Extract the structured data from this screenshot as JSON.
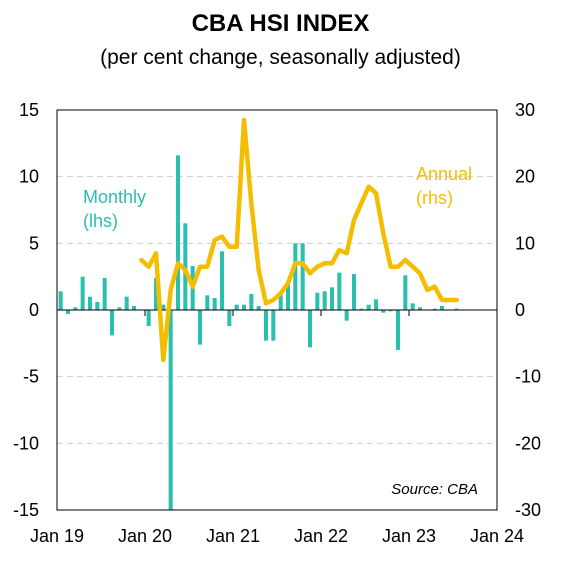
{
  "chart_data": {
    "type": "bar+line",
    "title": "CBA HSI INDEX",
    "subtitle": "(per cent change, seasonally adjusted)",
    "x_tick_labels": [
      "Jan 19",
      "Jan 20",
      "Jan 21",
      "Jan 22",
      "Jan 23",
      "Jan 24"
    ],
    "left_axis": {
      "ylim": [
        -15,
        15
      ],
      "ticks": [
        "15",
        "10",
        "5",
        "0",
        "-5",
        "-10",
        "-15"
      ]
    },
    "right_axis": {
      "ylim": [
        -30,
        30
      ],
      "ticks": [
        "30",
        "20",
        "10",
        "0",
        "-10",
        "-20",
        "-30"
      ]
    },
    "grid": "horizontal dashed",
    "series": [
      {
        "name": "Monthly (lhs)",
        "label_lines": [
          "Monthly",
          "(lhs)"
        ],
        "type": "bar",
        "axis": "left",
        "color": "#2bbfae",
        "x": [
          "2019-01",
          "2019-02",
          "2019-03",
          "2019-04",
          "2019-05",
          "2019-06",
          "2019-07",
          "2019-08",
          "2019-09",
          "2019-10",
          "2019-11",
          "2019-12",
          "2020-01",
          "2020-02",
          "2020-03",
          "2020-04",
          "2020-05",
          "2020-06",
          "2020-07",
          "2020-08",
          "2020-09",
          "2020-10",
          "2020-11",
          "2020-12",
          "2021-01",
          "2021-02",
          "2021-03",
          "2021-04",
          "2021-05",
          "2021-06",
          "2021-07",
          "2021-08",
          "2021-09",
          "2021-10",
          "2021-11",
          "2021-12",
          "2022-01",
          "2022-02",
          "2022-03",
          "2022-04",
          "2022-05",
          "2022-06",
          "2022-07",
          "2022-08",
          "2022-09",
          "2022-10",
          "2022-11",
          "2022-12",
          "2023-01",
          "2023-02",
          "2023-03",
          "2023-04",
          "2023-05",
          "2023-06",
          "2023-07"
        ],
        "values": [
          1.4,
          -0.3,
          0.2,
          2.5,
          1.0,
          0.6,
          2.4,
          -1.9,
          0.2,
          1.0,
          0.3,
          0.0,
          -1.2,
          2.4,
          0.4,
          -15.0,
          11.6,
          6.5,
          3.3,
          -2.6,
          1.1,
          0.9,
          4.4,
          -1.2,
          0.4,
          0.4,
          1.2,
          0.3,
          -2.3,
          -2.3,
          1.1,
          2.0,
          5.0,
          5.0,
          -2.8,
          1.3,
          1.4,
          1.7,
          2.8,
          -0.8,
          2.7,
          0.1,
          0.4,
          0.8,
          -0.2,
          -0.1,
          -3.0,
          2.6,
          0.5,
          0.2,
          0.0,
          0.1,
          0.3,
          0.0,
          0.1
        ]
      },
      {
        "name": "Annual (rhs)",
        "label_lines": [
          "Annual",
          "(rhs)"
        ],
        "type": "line",
        "axis": "right",
        "color": "#f5bd00",
        "x": [
          "2019-12",
          "2020-01",
          "2020-02",
          "2020-03",
          "2020-04",
          "2020-05",
          "2020-06",
          "2020-07",
          "2020-08",
          "2020-09",
          "2020-10",
          "2020-11",
          "2020-12",
          "2021-01",
          "2021-02",
          "2021-03",
          "2021-04",
          "2021-05",
          "2021-06",
          "2021-07",
          "2021-08",
          "2021-09",
          "2021-10",
          "2021-11",
          "2021-12",
          "2022-01",
          "2022-02",
          "2022-03",
          "2022-04",
          "2022-05",
          "2022-06",
          "2022-07",
          "2022-08",
          "2022-09",
          "2022-10",
          "2022-11",
          "2022-12",
          "2023-01",
          "2023-02",
          "2023-03",
          "2023-04",
          "2023-05",
          "2023-06",
          "2023-07"
        ],
        "values": [
          7.5,
          6.5,
          8.5,
          -7.5,
          3.0,
          7.0,
          6.0,
          3.5,
          6.5,
          6.5,
          10.5,
          11.0,
          9.5,
          9.5,
          28.5,
          16.0,
          6.0,
          1.0,
          1.5,
          2.5,
          4.0,
          7.0,
          7.0,
          5.5,
          6.5,
          7.0,
          7.0,
          9.0,
          8.5,
          13.5,
          16.0,
          18.5,
          17.5,
          11.5,
          6.5,
          6.5,
          7.5,
          6.5,
          5.5,
          3.0,
          3.5,
          1.5,
          1.5,
          1.5
        ]
      }
    ],
    "source": "Source: CBA"
  }
}
